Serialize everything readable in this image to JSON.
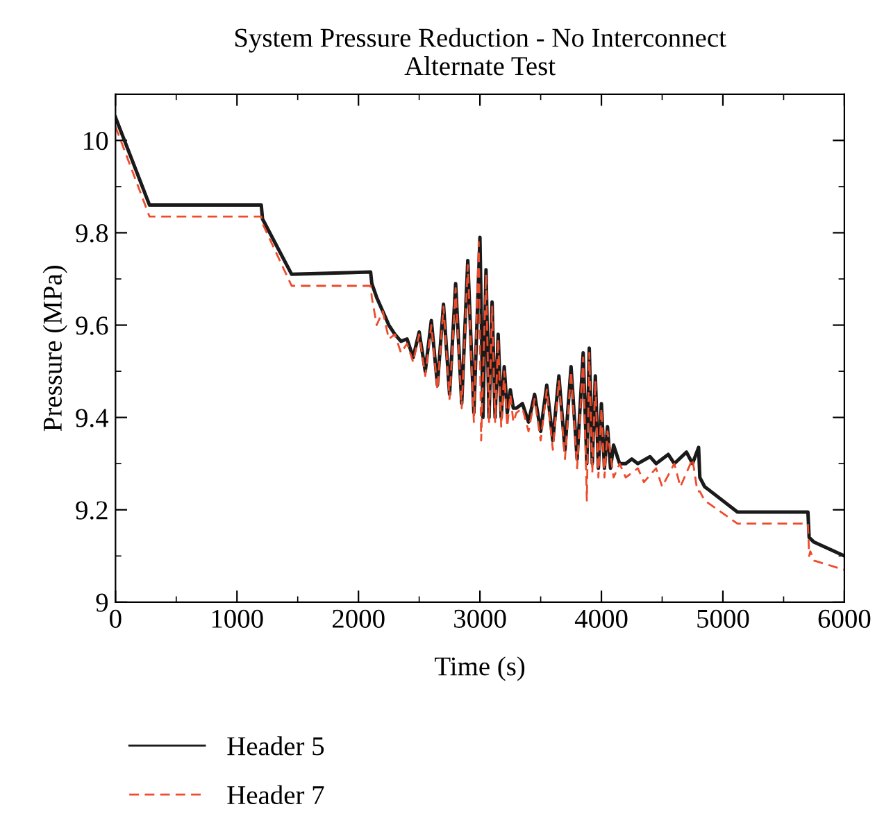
{
  "chart_data": {
    "type": "line",
    "title": "System Pressure Reduction - No Interconnect\nAlternate Test",
    "xlabel": "Time (s)",
    "ylabel": "Pressure (MPa)",
    "xlim": [
      0,
      6000
    ],
    "xticks": [
      0,
      1000,
      2000,
      3000,
      4000,
      5000,
      6000
    ],
    "ylim": [
      9,
      10.1
    ],
    "yticks": [
      9,
      9.2,
      9.4,
      9.6,
      9.8,
      10
    ],
    "grid": false,
    "legend": "bottom left",
    "marker": "none",
    "series": [
      {
        "name": "Header 5",
        "color": "#1a1a1a",
        "line_style": "solid",
        "x": [
          0,
          280,
          1200,
          1210,
          1450,
          2100,
          2110,
          2150,
          2200,
          2250,
          2300,
          2350,
          2400,
          2450,
          2500,
          2550,
          2600,
          2650,
          2700,
          2750,
          2800,
          2850,
          2900,
          2950,
          3000,
          3025,
          3050,
          3075,
          3100,
          3125,
          3150,
          3175,
          3200,
          3225,
          3250,
          3275,
          3300,
          3350,
          3400,
          3450,
          3500,
          3550,
          3600,
          3650,
          3700,
          3750,
          3800,
          3850,
          3880,
          3900,
          3925,
          3950,
          3975,
          4000,
          4025,
          4050,
          4075,
          4100,
          4150,
          4200,
          4250,
          4300,
          4400,
          4450,
          4550,
          4600,
          4700,
          4750,
          4800,
          4810,
          4850,
          5120,
          5700,
          5710,
          5750,
          6000
        ],
        "values": [
          10.05,
          9.86,
          9.86,
          9.83,
          9.71,
          9.715,
          9.69,
          9.66,
          9.63,
          9.6,
          9.58,
          9.565,
          9.57,
          9.53,
          9.585,
          9.5,
          9.61,
          9.47,
          9.645,
          9.45,
          9.69,
          9.43,
          9.74,
          9.41,
          9.79,
          9.4,
          9.72,
          9.4,
          9.65,
          9.4,
          9.58,
          9.4,
          9.51,
          9.41,
          9.46,
          9.42,
          9.42,
          9.43,
          9.39,
          9.45,
          9.37,
          9.47,
          9.35,
          9.49,
          9.33,
          9.51,
          9.31,
          9.54,
          9.3,
          9.55,
          9.3,
          9.49,
          9.29,
          9.43,
          9.29,
          9.38,
          9.29,
          9.34,
          9.3,
          9.3,
          9.31,
          9.3,
          9.315,
          9.3,
          9.32,
          9.3,
          9.325,
          9.3,
          9.335,
          9.27,
          9.25,
          9.195,
          9.195,
          9.14,
          9.13,
          9.1
        ]
      },
      {
        "name": "Header 7",
        "color": "#ee4b2b",
        "line_style": "dashed",
        "x": [
          0,
          280,
          1200,
          1210,
          1450,
          2100,
          2110,
          2150,
          2200,
          2250,
          2300,
          2350,
          2400,
          2450,
          2500,
          2550,
          2600,
          2650,
          2700,
          2750,
          2800,
          2850,
          2900,
          2950,
          2990,
          3010,
          3050,
          3075,
          3100,
          3125,
          3150,
          3175,
          3200,
          3225,
          3250,
          3275,
          3300,
          3350,
          3400,
          3450,
          3500,
          3550,
          3600,
          3650,
          3700,
          3750,
          3800,
          3850,
          3880,
          3900,
          3925,
          3950,
          3975,
          4000,
          4025,
          4050,
          4100,
          4150,
          4200,
          4300,
          4350,
          4450,
          4500,
          4600,
          4650,
          4750,
          4790,
          4810,
          4850,
          5120,
          5700,
          5710,
          5720,
          5750,
          6000
        ],
        "values": [
          10.03,
          9.835,
          9.835,
          9.82,
          9.685,
          9.685,
          9.66,
          9.6,
          9.63,
          9.57,
          9.58,
          9.54,
          9.56,
          9.52,
          9.58,
          9.49,
          9.6,
          9.46,
          9.64,
          9.44,
          9.68,
          9.42,
          9.73,
          9.39,
          9.78,
          9.35,
          9.71,
          9.39,
          9.64,
          9.39,
          9.57,
          9.38,
          9.5,
          9.38,
          9.45,
          9.39,
          9.41,
          9.42,
          9.37,
          9.44,
          9.35,
          9.46,
          9.33,
          9.48,
          9.31,
          9.5,
          9.29,
          9.53,
          9.22,
          9.54,
          9.28,
          9.48,
          9.27,
          9.42,
          9.27,
          9.37,
          9.27,
          9.3,
          9.27,
          9.29,
          9.26,
          9.29,
          9.25,
          9.3,
          9.25,
          9.31,
          9.24,
          9.24,
          9.22,
          9.17,
          9.17,
          9.1,
          9.11,
          9.09,
          9.07
        ]
      }
    ]
  }
}
